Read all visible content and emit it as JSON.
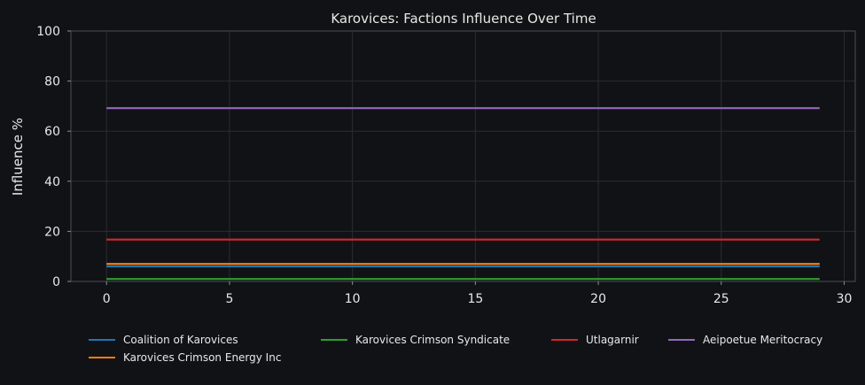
{
  "chart_data": {
    "type": "line",
    "title": "Karovices: Factions Influence Over Time",
    "xlabel": "",
    "ylabel": "Influence %",
    "xlim": [
      -1.45,
      30.45
    ],
    "ylim": [
      0,
      100
    ],
    "xticks": [
      0,
      5,
      10,
      15,
      20,
      25,
      30
    ],
    "xtick_labels": [
      "0",
      "5",
      "10",
      "15",
      "20",
      "25",
      "30"
    ],
    "yticks": [
      0,
      20,
      40,
      60,
      80,
      100
    ],
    "ytick_labels": [
      "0",
      "20",
      "40",
      "60",
      "80",
      "100"
    ],
    "grid": true,
    "legend_position": "bottom",
    "x": [
      0,
      29
    ],
    "series": [
      {
        "name": "Coalition of Karovices",
        "color": "#1f77b4",
        "values": [
          6.0,
          6.0
        ]
      },
      {
        "name": "Karovices Crimson Energy Inc",
        "color": "#ff7f0e",
        "values": [
          7.0,
          7.0
        ]
      },
      {
        "name": "Karovices Crimson Syndicate",
        "color": "#2ca02c",
        "values": [
          1.0,
          1.0
        ]
      },
      {
        "name": "Utlagarnir",
        "color": "#d62728",
        "values": [
          16.7,
          16.7
        ]
      },
      {
        "name": "Aeipoetue Meritocracy",
        "color": "#9467bd",
        "values": [
          69.2,
          69.2
        ]
      }
    ]
  }
}
